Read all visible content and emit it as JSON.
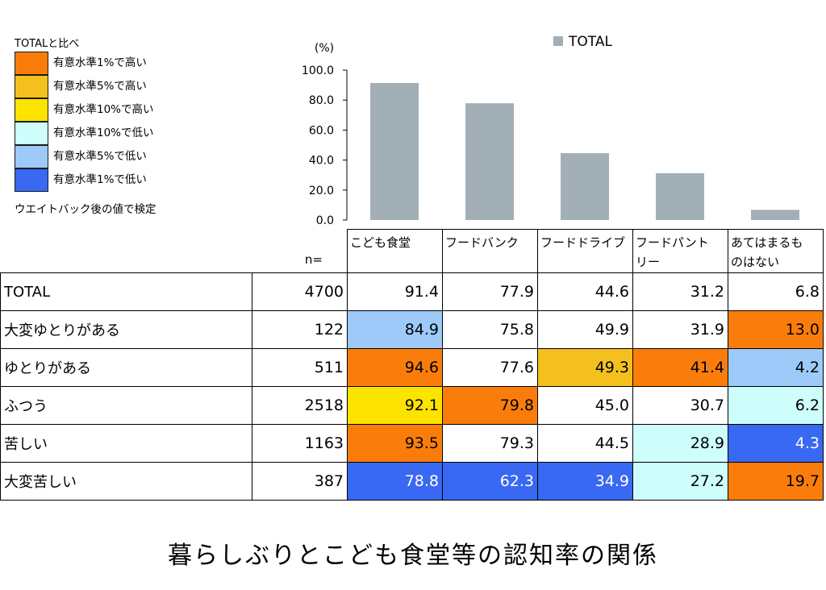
{
  "legend": {
    "title": "TOTALと比べ",
    "items": [
      {
        "label": "有意水準1%で高い",
        "color": "#fa7d0c"
      },
      {
        "label": "有意水準5%で高い",
        "color": "#f4c01e"
      },
      {
        "label": "有意水準10%で高い",
        "color": "#fde300"
      },
      {
        "label": "有意水準10%で低い",
        "color": "#cdfefc"
      },
      {
        "label": "有意水準5%で低い",
        "color": "#9dcaf8"
      },
      {
        "label": "有意水準1%で低い",
        "color": "#3968f2"
      }
    ],
    "note": "ウエイトバック後の値で検定"
  },
  "chart_data": {
    "type": "bar",
    "categories": [
      "こども食堂",
      "フードバンク",
      "フードドライブ",
      "フードパントリー",
      "あてはまるものはない"
    ],
    "series": [
      {
        "name": "TOTAL",
        "values": [
          91.4,
          77.9,
          44.6,
          31.2,
          6.8
        ],
        "color": "#a3afb6"
      }
    ],
    "ylim": [
      0,
      100
    ],
    "yticks": [
      "0.0",
      "20.0",
      "40.0",
      "60.0",
      "80.0",
      "100.0"
    ],
    "yunit": "(%)",
    "grid": false,
    "legend": "top-center"
  },
  "table": {
    "n_label": "n=",
    "headers": [
      [
        "こども食堂"
      ],
      [
        "フードバンク"
      ],
      [
        "フードドライブ"
      ],
      [
        "フードパント",
        "リー"
      ],
      [
        "あてはまるも",
        "のはない"
      ]
    ],
    "rows": [
      {
        "label": "TOTAL",
        "n": "4700",
        "cells": [
          {
            "v": "91.4",
            "c": ""
          },
          {
            "v": "77.9",
            "c": ""
          },
          {
            "v": "44.6",
            "c": ""
          },
          {
            "v": "31.2",
            "c": ""
          },
          {
            "v": "6.8",
            "c": ""
          }
        ]
      },
      {
        "label": "大変ゆとりがある",
        "n": "122",
        "cells": [
          {
            "v": "84.9",
            "c": "#9dcaf8"
          },
          {
            "v": "75.8",
            "c": ""
          },
          {
            "v": "49.9",
            "c": ""
          },
          {
            "v": "31.9",
            "c": ""
          },
          {
            "v": "13.0",
            "c": "#fa7d0c"
          }
        ]
      },
      {
        "label": "ゆとりがある",
        "n": "511",
        "cells": [
          {
            "v": "94.6",
            "c": "#fa7d0c"
          },
          {
            "v": "77.6",
            "c": ""
          },
          {
            "v": "49.3",
            "c": "#f4c01e"
          },
          {
            "v": "41.4",
            "c": "#fa7d0c"
          },
          {
            "v": "4.2",
            "c": "#9dcaf8"
          }
        ]
      },
      {
        "label": "ふつう",
        "n": "2518",
        "cells": [
          {
            "v": "92.1",
            "c": "#fde300"
          },
          {
            "v": "79.8",
            "c": "#fa7d0c"
          },
          {
            "v": "45.0",
            "c": ""
          },
          {
            "v": "30.7",
            "c": ""
          },
          {
            "v": "6.2",
            "c": "#cdfefc"
          }
        ]
      },
      {
        "label": "苦しい",
        "n": "1163",
        "cells": [
          {
            "v": "93.5",
            "c": "#fa7d0c"
          },
          {
            "v": "79.3",
            "c": ""
          },
          {
            "v": "44.5",
            "c": ""
          },
          {
            "v": "28.9",
            "c": "#cdfefc"
          },
          {
            "v": "4.3",
            "c": "#3968f2",
            "fg": "#ffffff"
          }
        ]
      },
      {
        "label": "大変苦しい",
        "n": "387",
        "cells": [
          {
            "v": "78.8",
            "c": "#3968f2",
            "fg": "#ffffff"
          },
          {
            "v": "62.3",
            "c": "#3968f2",
            "fg": "#ffffff"
          },
          {
            "v": "34.9",
            "c": "#3968f2",
            "fg": "#ffffff"
          },
          {
            "v": "27.2",
            "c": "#cdfefc"
          },
          {
            "v": "19.7",
            "c": "#fa7d0c"
          }
        ]
      }
    ]
  },
  "caption": "暮らしぶりとこども食堂等の認知率の関係"
}
